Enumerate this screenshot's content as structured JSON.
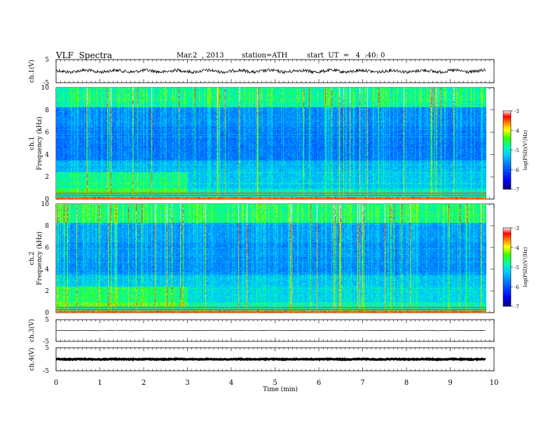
{
  "header": {
    "title": "VLF  Spectra",
    "date": "Mar.2  , 2013",
    "station": "station=ATH",
    "start": "start  UT  =   4  :40: 0"
  },
  "chart_data": [
    {
      "type": "line",
      "name": "ch1-waveform",
      "ylabel": "ch.1(V)",
      "ylim": [
        -5,
        5
      ],
      "yticks": [
        "5",
        "-5"
      ],
      "xlim": [
        0,
        10
      ],
      "level": 0
    },
    {
      "type": "heatmap",
      "name": "ch1-spectrogram",
      "ylabel": [
        "ch.1",
        "Frequency  (kHz)"
      ],
      "ylim": [
        0,
        10
      ],
      "yticks": [
        "0",
        "2",
        "4",
        "6",
        "8",
        "10"
      ],
      "xlim": [
        0,
        9.8
      ],
      "colorbar": {
        "label": "log(PSD)(V²/Hz)",
        "range": [
          -7,
          -3
        ],
        "ticks": [
          "-3",
          "-4",
          "-5",
          "-6",
          "-7"
        ]
      },
      "reduced_band_before_min": 3.0
    },
    {
      "type": "heatmap",
      "name": "ch2-spectrogram",
      "ylabel": [
        "ch.2",
        "Frequency  (kHz)"
      ],
      "ylim": [
        0,
        10
      ],
      "yticks": [
        "0",
        "2",
        "4",
        "6",
        "8",
        "10"
      ],
      "xlim": [
        0,
        9.8
      ],
      "colorbar": {
        "label": "log(PSD)(V²/Hz)",
        "range": [
          -7,
          -3
        ],
        "ticks": [
          "-3",
          "-4",
          "-5",
          "-6",
          "-7"
        ]
      },
      "reduced_band_before_min": 3.0
    },
    {
      "type": "line",
      "name": "ch3-waveform",
      "ylabel": "ch.3(V)",
      "ylim": [
        -5,
        5
      ],
      "yticks": [
        "5",
        "-5"
      ],
      "level": 0
    },
    {
      "type": "line",
      "name": "ch4-waveform",
      "ylabel": "ch.4(V)",
      "ylim": [
        -5,
        5
      ],
      "yticks": [
        "5",
        "-5"
      ],
      "level": 0
    }
  ],
  "xaxis": {
    "label": "Time  (min)",
    "ticks": [
      "0",
      "1",
      "2",
      "3",
      "4",
      "5",
      "6",
      "7",
      "8",
      "9",
      "10"
    ],
    "range": [
      0,
      10
    ]
  },
  "colors": {
    "scale": [
      "#000080",
      "#0000ff",
      "#00b4ff",
      "#00ffb4",
      "#28ff00",
      "#ffff00",
      "#ff8000",
      "#ff0000",
      "#ffffff"
    ]
  }
}
